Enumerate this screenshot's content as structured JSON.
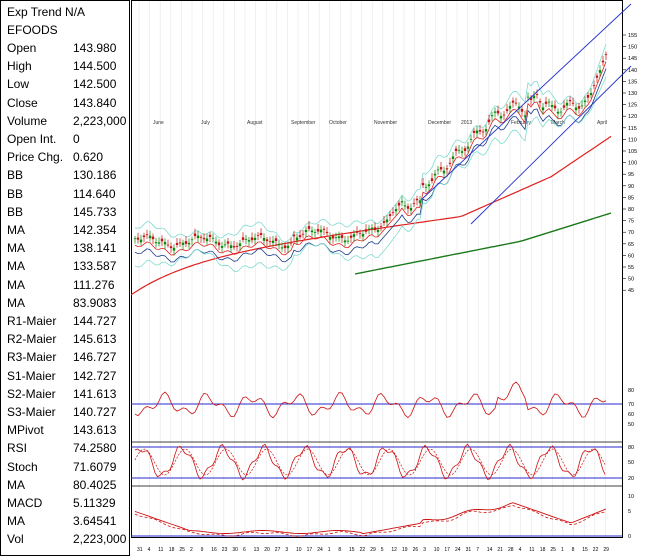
{
  "panel": {
    "title": "Exp Trend N/A",
    "symbol": "EFOODS",
    "rows": [
      {
        "label": "Open",
        "value": "143.980"
      },
      {
        "label": "High",
        "value": "144.500"
      },
      {
        "label": "Low",
        "value": "142.500"
      },
      {
        "label": "Close",
        "value": "143.840"
      },
      {
        "label": "Volume",
        "value": "2,223,000"
      },
      {
        "label": "Open Int.",
        "value": "0"
      },
      {
        "label": "Price Chg.",
        "value": "0.620"
      },
      {
        "label": "BB",
        "value": "130.186"
      },
      {
        "label": "BB",
        "value": "114.640"
      },
      {
        "label": "BB",
        "value": "145.733"
      },
      {
        "label": "MA",
        "value": "142.354"
      },
      {
        "label": "MA",
        "value": "138.141"
      },
      {
        "label": "MA",
        "value": "133.587"
      },
      {
        "label": "MA",
        "value": "111.276"
      },
      {
        "label": "MA",
        "value": "83.9083"
      },
      {
        "label": "R1-Maier",
        "value": "144.727"
      },
      {
        "label": "R2-Maier",
        "value": "145.613"
      },
      {
        "label": "R3-Maier",
        "value": "146.727"
      },
      {
        "label": "S1-Maier",
        "value": "142.727"
      },
      {
        "label": "S2-Maier",
        "value": "141.613"
      },
      {
        "label": "S3-Maier",
        "value": "140.727"
      },
      {
        "label": "MPivot",
        "value": "143.613"
      },
      {
        "label": "RSI",
        "value": "74.2580"
      },
      {
        "label": "Stoch",
        "value": "71.6079"
      },
      {
        "label": "MA",
        "value": "80.4025"
      },
      {
        "label": "MACD",
        "value": "5.11329"
      },
      {
        "label": "MA",
        "value": "3.64541"
      },
      {
        "label": "Vol",
        "value": "2,223,000"
      }
    ]
  },
  "price_axis": {
    "ticks": [
      "155",
      "150",
      "145",
      "140",
      "135",
      "130",
      "125",
      "120",
      "115",
      "110",
      "105",
      "100",
      "95",
      "90",
      "85",
      "80",
      "75",
      "70",
      "65",
      "60",
      "55",
      "50",
      "45"
    ]
  },
  "month_labels": [
    "June",
    "July",
    "August",
    "September",
    "October",
    "November",
    "December",
    "2013",
    "February",
    "March",
    "April"
  ],
  "date_ticks": [
    "31",
    "4",
    "11",
    "18",
    "25",
    "2",
    "9",
    "16",
    "23",
    "30",
    "6",
    "13",
    "20",
    "27",
    "3",
    "10",
    "17",
    "24",
    "1",
    "8",
    "15",
    "22",
    "29",
    "5",
    "12",
    "19",
    "26",
    "3",
    "10",
    "17",
    "24",
    "31",
    "7",
    "14",
    "21",
    "28",
    "4",
    "11",
    "18",
    "25",
    "1",
    "8",
    "15",
    "22",
    "29"
  ],
  "rsi_axis": {
    "ticks": [
      "80",
      "70",
      "60",
      "50"
    ]
  },
  "stoch_axis": {
    "ticks": [
      "80",
      "50",
      "20"
    ]
  },
  "macd_axis": {
    "ticks": [
      "10",
      "5",
      "0"
    ]
  },
  "colors": {
    "price_ma_red": "#e02020",
    "ma_green": "#1a7a1a",
    "bollinger_cyan": "#7fdcd0",
    "trend_channel_blue": "#2233cc",
    "candle_green": "#0a8a0a",
    "candle_red": "#c81414",
    "indicator_red": "#cc1010",
    "level_blue": "#2a2acc"
  }
}
